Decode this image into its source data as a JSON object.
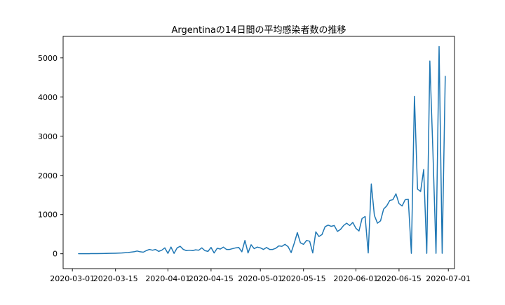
{
  "chart_data": {
    "type": "line",
    "title": "Argentinaの14日間の平均感染者数の推移",
    "xlabel": "",
    "ylabel": "",
    "x_axis": {
      "type": "date",
      "range": [
        "2020-02-27",
        "2020-07-03"
      ],
      "ticks": [
        "2020-03-01",
        "2020-03-15",
        "2020-04-01",
        "2020-04-15",
        "2020-05-01",
        "2020-05-15",
        "2020-06-01",
        "2020-06-15",
        "2020-07-01"
      ]
    },
    "y_axis": {
      "range": [
        -380,
        5550
      ],
      "ticks": [
        0,
        1000,
        2000,
        3000,
        4000,
        5000
      ]
    },
    "grid": false,
    "legend": "none",
    "colors": {
      "line": "#1f77b4"
    },
    "series": [
      {
        "values": [
          [
            "2020-03-03",
            1
          ],
          [
            "2020-03-05",
            2
          ],
          [
            "2020-03-07",
            3
          ],
          [
            "2020-03-09",
            5
          ],
          [
            "2020-03-11",
            7
          ],
          [
            "2020-03-13",
            10
          ],
          [
            "2020-03-15",
            14
          ],
          [
            "2020-03-17",
            20
          ],
          [
            "2020-03-19",
            30
          ],
          [
            "2020-03-21",
            50
          ],
          [
            "2020-03-22",
            70
          ],
          [
            "2020-03-23",
            50
          ],
          [
            "2020-03-24",
            40
          ],
          [
            "2020-03-25",
            80
          ],
          [
            "2020-03-26",
            110
          ],
          [
            "2020-03-27",
            90
          ],
          [
            "2020-03-28",
            110
          ],
          [
            "2020-03-29",
            60
          ],
          [
            "2020-03-30",
            90
          ],
          [
            "2020-03-31",
            150
          ],
          [
            "2020-04-01",
            10
          ],
          [
            "2020-04-02",
            170
          ],
          [
            "2020-04-03",
            10
          ],
          [
            "2020-04-04",
            150
          ],
          [
            "2020-04-05",
            190
          ],
          [
            "2020-04-06",
            110
          ],
          [
            "2020-04-07",
            80
          ],
          [
            "2020-04-08",
            90
          ],
          [
            "2020-04-09",
            80
          ],
          [
            "2020-04-10",
            100
          ],
          [
            "2020-04-11",
            90
          ],
          [
            "2020-04-12",
            150
          ],
          [
            "2020-04-13",
            80
          ],
          [
            "2020-04-14",
            60
          ],
          [
            "2020-04-15",
            160
          ],
          [
            "2020-04-16",
            20
          ],
          [
            "2020-04-17",
            140
          ],
          [
            "2020-04-18",
            120
          ],
          [
            "2020-04-19",
            170
          ],
          [
            "2020-04-20",
            110
          ],
          [
            "2020-04-21",
            110
          ],
          [
            "2020-04-22",
            130
          ],
          [
            "2020-04-23",
            150
          ],
          [
            "2020-04-24",
            160
          ],
          [
            "2020-04-25",
            50
          ],
          [
            "2020-04-26",
            340
          ],
          [
            "2020-04-27",
            20
          ],
          [
            "2020-04-28",
            230
          ],
          [
            "2020-04-29",
            130
          ],
          [
            "2020-04-30",
            170
          ],
          [
            "2020-05-01",
            150
          ],
          [
            "2020-05-02",
            110
          ],
          [
            "2020-05-03",
            160
          ],
          [
            "2020-05-04",
            110
          ],
          [
            "2020-05-05",
            110
          ],
          [
            "2020-05-06",
            140
          ],
          [
            "2020-05-07",
            200
          ],
          [
            "2020-05-08",
            190
          ],
          [
            "2020-05-09",
            240
          ],
          [
            "2020-05-10",
            180
          ],
          [
            "2020-05-11",
            30
          ],
          [
            "2020-05-12",
            270
          ],
          [
            "2020-05-13",
            540
          ],
          [
            "2020-05-14",
            280
          ],
          [
            "2020-05-15",
            240
          ],
          [
            "2020-05-16",
            340
          ],
          [
            "2020-05-17",
            320
          ],
          [
            "2020-05-18",
            20
          ],
          [
            "2020-05-19",
            560
          ],
          [
            "2020-05-20",
            440
          ],
          [
            "2020-05-21",
            490
          ],
          [
            "2020-05-22",
            690
          ],
          [
            "2020-05-23",
            730
          ],
          [
            "2020-05-24",
            700
          ],
          [
            "2020-05-25",
            720
          ],
          [
            "2020-05-26",
            570
          ],
          [
            "2020-05-27",
            620
          ],
          [
            "2020-05-28",
            720
          ],
          [
            "2020-05-29",
            780
          ],
          [
            "2020-05-30",
            720
          ],
          [
            "2020-05-31",
            800
          ],
          [
            "2020-06-01",
            650
          ],
          [
            "2020-06-02",
            580
          ],
          [
            "2020-06-03",
            900
          ],
          [
            "2020-06-04",
            950
          ],
          [
            "2020-06-05",
            20
          ],
          [
            "2020-06-06",
            1780
          ],
          [
            "2020-06-07",
            980
          ],
          [
            "2020-06-08",
            780
          ],
          [
            "2020-06-09",
            840
          ],
          [
            "2020-06-10",
            1140
          ],
          [
            "2020-06-11",
            1220
          ],
          [
            "2020-06-12",
            1360
          ],
          [
            "2020-06-13",
            1380
          ],
          [
            "2020-06-14",
            1530
          ],
          [
            "2020-06-15",
            1280
          ],
          [
            "2020-06-16",
            1220
          ],
          [
            "2020-06-17",
            1380
          ],
          [
            "2020-06-18",
            1390
          ],
          [
            "2020-06-19",
            10
          ],
          [
            "2020-06-20",
            4020
          ],
          [
            "2020-06-21",
            1650
          ],
          [
            "2020-06-22",
            1590
          ],
          [
            "2020-06-23",
            2150
          ],
          [
            "2020-06-24",
            10
          ],
          [
            "2020-06-25",
            4920
          ],
          [
            "2020-06-26",
            2600
          ],
          [
            "2020-06-27",
            10
          ],
          [
            "2020-06-28",
            5290
          ],
          [
            "2020-06-29",
            10
          ],
          [
            "2020-06-30",
            4530
          ]
        ]
      }
    ]
  }
}
